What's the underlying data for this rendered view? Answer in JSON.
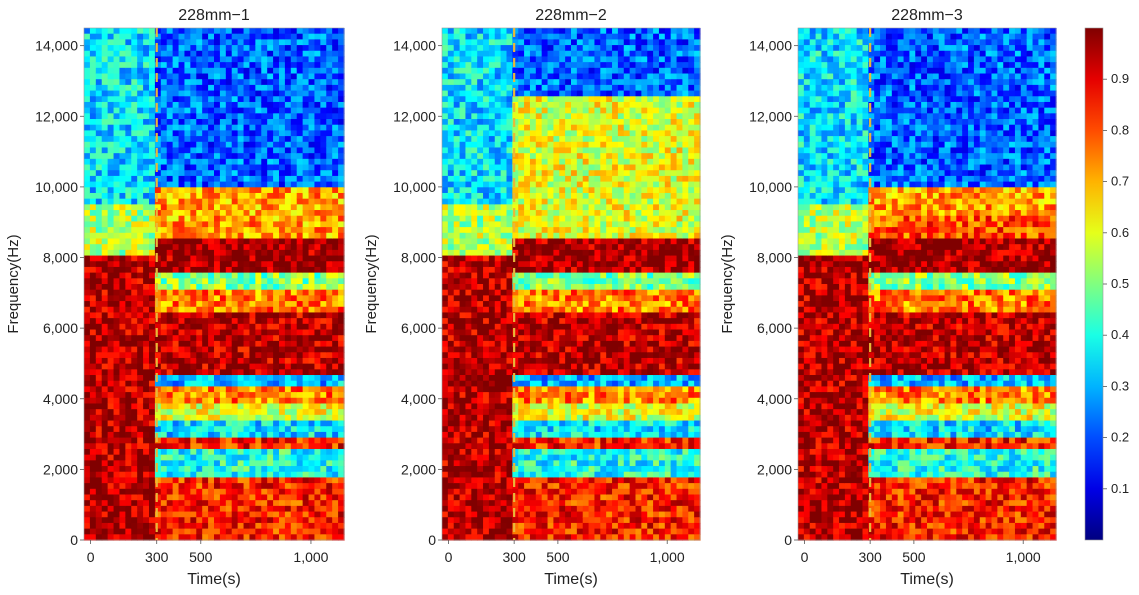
{
  "chart_data": [
    {
      "type": "heatmap",
      "title": "228mm−1",
      "xlabel": "Time(s)",
      "ylabel": "Frequency(Hz)",
      "xlim": [
        -30,
        1150
      ],
      "ylim": [
        0,
        14500
      ],
      "x_ticks": [
        0,
        300,
        500,
        1000
      ],
      "x_tick_labels": [
        "0",
        "300",
        "500",
        "1,000"
      ],
      "y_ticks": [
        0,
        2000,
        4000,
        6000,
        8000,
        10000,
        12000,
        14000
      ],
      "y_tick_labels": [
        "0",
        "2,000",
        "4,000",
        "6,000",
        "8,000",
        "10,000",
        "12,000",
        "14,000"
      ],
      "marker_line": {
        "x": 300,
        "style": "dashed",
        "color": "#e8b838"
      }
    },
    {
      "type": "heatmap",
      "title": "228mm−2",
      "xlabel": "Time(s)",
      "ylabel": "Frequency(Hz)",
      "xlim": [
        -30,
        1150
      ],
      "ylim": [
        0,
        14500
      ],
      "x_ticks": [
        0,
        300,
        500,
        1000
      ],
      "x_tick_labels": [
        "0",
        "300",
        "500",
        "1,000"
      ],
      "y_ticks": [
        0,
        2000,
        4000,
        6000,
        8000,
        10000,
        12000,
        14000
      ],
      "y_tick_labels": [
        "0",
        "2,000",
        "4,000",
        "6,000",
        "8,000",
        "10,000",
        "12,000",
        "14,000"
      ],
      "marker_line": {
        "x": 300,
        "style": "dashed",
        "color": "#e8b838"
      }
    },
    {
      "type": "heatmap",
      "title": "228mm−3",
      "xlabel": "Time(s)",
      "ylabel": "Frequency(Hz)",
      "xlim": [
        -30,
        1150
      ],
      "ylim": [
        0,
        14500
      ],
      "x_ticks": [
        0,
        300,
        500,
        1000
      ],
      "x_tick_labels": [
        "0",
        "300",
        "500",
        "1,000"
      ],
      "y_ticks": [
        0,
        2000,
        4000,
        6000,
        8000,
        10000,
        12000,
        14000
      ],
      "y_tick_labels": [
        "0",
        "2,000",
        "4,000",
        "6,000",
        "8,000",
        "10,000",
        "12,000",
        "14,000"
      ],
      "marker_line": {
        "x": 300,
        "style": "dashed",
        "color": "#e8b838"
      }
    }
  ],
  "colorbar": {
    "range": [
      0,
      1
    ],
    "ticks": [
      0.1,
      0.2,
      0.3,
      0.4,
      0.5,
      0.6,
      0.7,
      0.8,
      0.9
    ],
    "tick_labels": [
      "0.1",
      "0.2",
      "0.3",
      "0.4",
      "0.5",
      "0.6",
      "0.7",
      "0.8",
      "0.9"
    ],
    "colormap": "jet"
  }
}
